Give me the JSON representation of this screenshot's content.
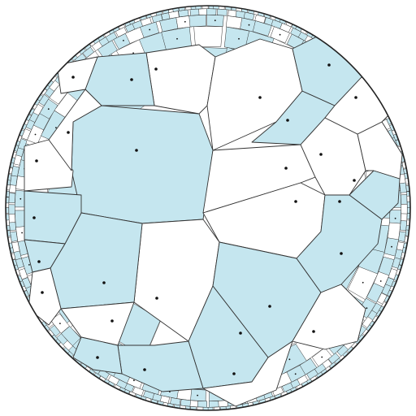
{
  "diagram": {
    "kind": "hyperbolic voronoi tessellation (Poincare disk)",
    "colors": {
      "shaded_cell": "#c5e6ef",
      "plain_cell": "#ffffff",
      "edge": "#333333",
      "site": "#111111",
      "disk_border": "#222222"
    },
    "shaded_cell_count": 14,
    "plain_cell_count": 14
  }
}
